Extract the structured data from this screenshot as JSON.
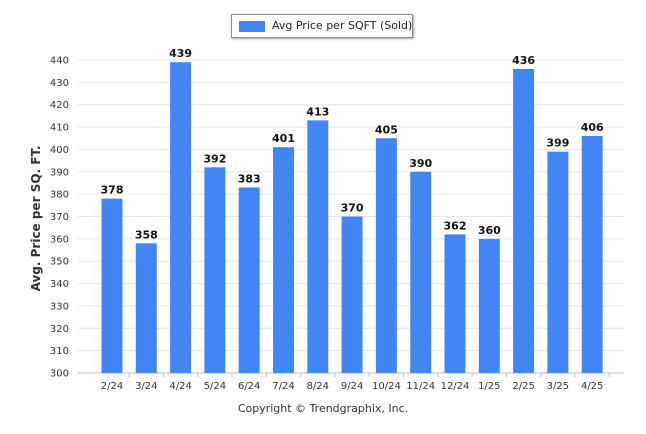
{
  "chart_data": {
    "type": "bar",
    "legend": "Avg Price per SQFT (Sold)",
    "legend_position": "top-center",
    "ylabel": "Avg. Price per SQ. FT.",
    "xlabel": "",
    "categories": [
      "2/24",
      "3/24",
      "4/24",
      "5/24",
      "6/24",
      "7/24",
      "8/24",
      "9/24",
      "10/24",
      "11/24",
      "12/24",
      "1/25",
      "2/25",
      "3/25",
      "4/25"
    ],
    "series": [
      {
        "name": "Avg Price per SQFT (Sold)",
        "values": [
          378,
          358,
          439,
          392,
          383,
          401,
          413,
          370,
          405,
          390,
          362,
          360,
          436,
          399,
          406
        ]
      }
    ],
    "ylim": [
      300,
      440
    ],
    "yticks": [
      300,
      310,
      320,
      330,
      340,
      350,
      360,
      370,
      380,
      390,
      400,
      410,
      420,
      430,
      440
    ],
    "grid": true,
    "bar_color": "#4285f4"
  },
  "footer": {
    "copyright": "Copyright © Trendgraphix, Inc."
  }
}
